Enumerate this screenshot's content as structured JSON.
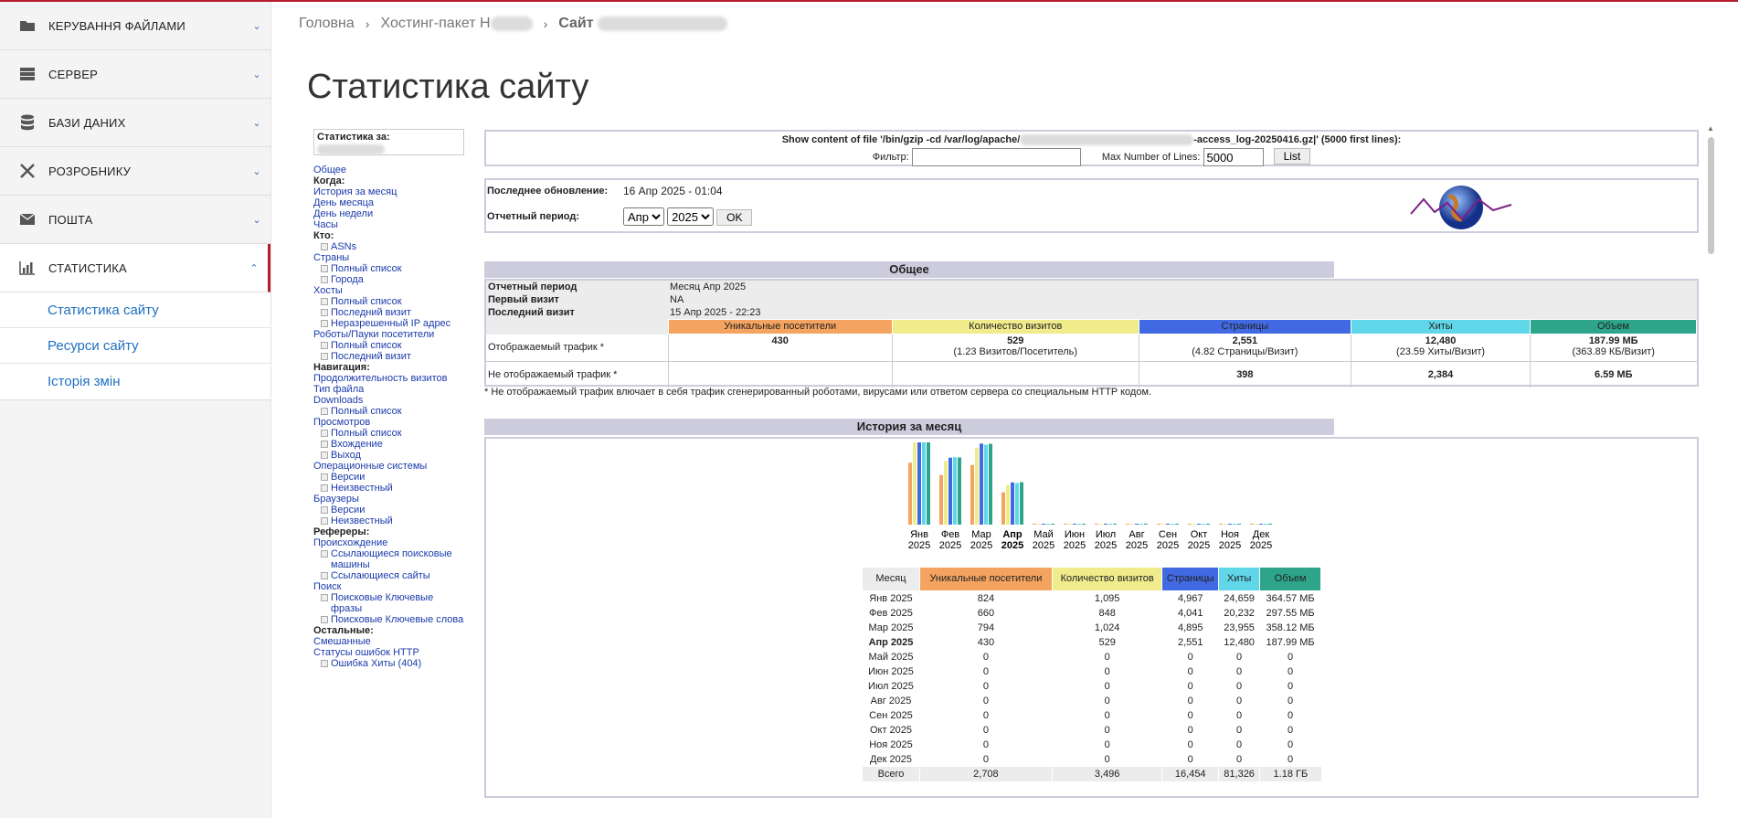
{
  "sidebar": {
    "items": [
      {
        "label": "КЕРУВАННЯ ФАЙЛАМИ",
        "icon": "folder-icon"
      },
      {
        "label": "СЕРВЕР",
        "icon": "server-icon"
      },
      {
        "label": "БАЗИ ДАНИХ",
        "icon": "database-icon"
      },
      {
        "label": "РОЗРОБНИКУ",
        "icon": "tools-icon"
      },
      {
        "label": "ПОШТА",
        "icon": "mail-icon"
      },
      {
        "label": "СТАТИСТИКА",
        "icon": "chart-icon"
      }
    ],
    "sub_items": [
      "Статистика сайту",
      "Ресурси сайту",
      "Історія змін"
    ]
  },
  "breadcrumb": {
    "home": "Головна",
    "hosting": "Хостинг-пакет Н",
    "site": "Сайт"
  },
  "page_title": "Статистика сайту",
  "menu": {
    "stats_for": "Статистика за:",
    "links": [
      {
        "t": "Общее",
        "k": "a"
      },
      {
        "t": "Когда:",
        "k": "b"
      },
      {
        "t": "История за месяц",
        "k": "a"
      },
      {
        "t": "День месяца",
        "k": "a"
      },
      {
        "t": "День недели",
        "k": "a"
      },
      {
        "t": "Часы",
        "k": "a"
      },
      {
        "t": "Кто:",
        "k": "b"
      },
      {
        "t": "ASNs",
        "k": "i"
      },
      {
        "t": "Страны",
        "k": "a"
      },
      {
        "t": "Полный список",
        "k": "i"
      },
      {
        "t": "Города",
        "k": "i"
      },
      {
        "t": "Хосты",
        "k": "a"
      },
      {
        "t": "Полный список",
        "k": "i"
      },
      {
        "t": "Последний визит",
        "k": "i"
      },
      {
        "t": "Неразрешенный IP адрес",
        "k": "i"
      },
      {
        "t": "Роботы/Пауки посетители",
        "k": "a"
      },
      {
        "t": "Полный список",
        "k": "i"
      },
      {
        "t": "Последний визит",
        "k": "i"
      },
      {
        "t": "Навигация:",
        "k": "b"
      },
      {
        "t": "Продолжительность визитов",
        "k": "a"
      },
      {
        "t": "Тип файла",
        "k": "a"
      },
      {
        "t": "Downloads",
        "k": "a"
      },
      {
        "t": "Полный список",
        "k": "i"
      },
      {
        "t": "Просмотров",
        "k": "a"
      },
      {
        "t": "Полный список",
        "k": "i"
      },
      {
        "t": "Вхождение",
        "k": "i"
      },
      {
        "t": "Выход",
        "k": "i"
      },
      {
        "t": "Операционные системы",
        "k": "a"
      },
      {
        "t": "Версии",
        "k": "i"
      },
      {
        "t": "Неизвестный",
        "k": "i"
      },
      {
        "t": "Браузеры",
        "k": "a"
      },
      {
        "t": "Версии",
        "k": "i"
      },
      {
        "t": "Неизвестный",
        "k": "i"
      },
      {
        "t": "Рефереры:",
        "k": "b"
      },
      {
        "t": "Происхождение",
        "k": "a"
      },
      {
        "t": "Ссылающиеся поисковые машины",
        "k": "i"
      },
      {
        "t": "Ссылающиеся сайты",
        "k": "i"
      },
      {
        "t": "Поиск",
        "k": "a"
      },
      {
        "t": "Поисковые Ключевые фразы",
        "k": "i"
      },
      {
        "t": "Поисковые Ключевые слова",
        "k": "i"
      },
      {
        "t": "Остальные:",
        "k": "b"
      },
      {
        "t": "Смешанные",
        "k": "a"
      },
      {
        "t": "Статусы ошибок HTTP",
        "k": "a"
      },
      {
        "t": "Ошибка Хиты (404)",
        "k": "i"
      }
    ]
  },
  "file_box": {
    "title_a": "Show content of file '/bin/gzip -cd /var/log/apache/",
    "title_b": "-access_log-20250416.gz|' (5000 first lines):",
    "filter_label": "Фильтр:",
    "max_label": "Max Number of Lines:",
    "max_value": "5000",
    "list_btn": "List"
  },
  "update": {
    "last_label": "Последнее обновление:",
    "last_value": "16 Апр 2025 - 01:04",
    "period_label": "Отчетный период:",
    "month": "Апр",
    "year": "2025",
    "ok": "OK"
  },
  "general": {
    "header": "Общее",
    "period_label": "Отчетный период",
    "period_value": "Месяц Апр 2025",
    "first_label": "Первый визит",
    "first_value": "NA",
    "last_label": "Последний визит",
    "last_value": "15 Апр 2025 - 22:23",
    "cols": [
      "Уникальные посетители",
      "Количество визитов",
      "Страницы",
      "Хиты",
      "Объем"
    ],
    "viewed_label": "Отображаемый трафик *",
    "viewed": [
      "430",
      "529",
      "2,551",
      "12,480",
      "187.99 МБ"
    ],
    "viewed_sub": [
      "",
      "(1.23 Визитов/Посетитель)",
      "(4.82 Страницы/Визит)",
      "(23.59 Хиты/Визит)",
      "(363.89 КБ/Визит)"
    ],
    "notviewed_label": "Не отображаемый трафик *",
    "notviewed": [
      "",
      "",
      "398",
      "2,384",
      "6.59 МБ"
    ],
    "note": "* Не отображаемый трафик влючает в себя трафик сгенерированный роботами, вирусами или ответом сервера со специальным HTTP кодом."
  },
  "month_history": {
    "header": "История за месяц",
    "col_month": "Месяц",
    "cols": [
      "Уникальные посетители",
      "Количество визитов",
      "Страницы",
      "Хиты",
      "Объем"
    ],
    "rows": [
      [
        "Янв 2025",
        "824",
        "1,095",
        "4,967",
        "24,659",
        "364.57 МБ"
      ],
      [
        "Фев 2025",
        "660",
        "848",
        "4,041",
        "20,232",
        "297.55 МБ"
      ],
      [
        "Мар 2025",
        "794",
        "1,024",
        "4,895",
        "23,955",
        "358.12 МБ"
      ],
      [
        "Апр 2025",
        "430",
        "529",
        "2,551",
        "12,480",
        "187.99 МБ"
      ],
      [
        "Май 2025",
        "0",
        "0",
        "0",
        "0",
        "0"
      ],
      [
        "Июн 2025",
        "0",
        "0",
        "0",
        "0",
        "0"
      ],
      [
        "Июл 2025",
        "0",
        "0",
        "0",
        "0",
        "0"
      ],
      [
        "Авг 2025",
        "0",
        "0",
        "0",
        "0",
        "0"
      ],
      [
        "Сен 2025",
        "0",
        "0",
        "0",
        "0",
        "0"
      ],
      [
        "Окт 2025",
        "0",
        "0",
        "0",
        "0",
        "0"
      ],
      [
        "Ноя 2025",
        "0",
        "0",
        "0",
        "0",
        "0"
      ],
      [
        "Дек 2025",
        "0",
        "0",
        "0",
        "0",
        "0"
      ]
    ],
    "total": [
      "Всего",
      "2,708",
      "3,496",
      "16,454",
      "81,326",
      "1.18 ГБ"
    ]
  },
  "chart_data": {
    "type": "bar",
    "categories": [
      "Янв",
      "Фев",
      "Мар",
      "Апр",
      "Май",
      "Июн",
      "Июл",
      "Авг",
      "Сен",
      "Окт",
      "Ноя",
      "Дек"
    ],
    "year": "2025",
    "highlight": "Апр",
    "series": [
      {
        "name": "Уникальные посетители",
        "values": [
          824,
          660,
          794,
          430,
          0,
          0,
          0,
          0,
          0,
          0,
          0,
          0
        ]
      },
      {
        "name": "Количество визитов",
        "values": [
          1095,
          848,
          1024,
          529,
          0,
          0,
          0,
          0,
          0,
          0,
          0,
          0
        ]
      },
      {
        "name": "Страницы",
        "values": [
          4967,
          4041,
          4895,
          2551,
          0,
          0,
          0,
          0,
          0,
          0,
          0,
          0
        ]
      },
      {
        "name": "Хиты",
        "values": [
          24659,
          20232,
          23955,
          12480,
          0,
          0,
          0,
          0,
          0,
          0,
          0,
          0
        ]
      },
      {
        "name": "Объем",
        "values": [
          364.57,
          297.55,
          358.12,
          187.99,
          0,
          0,
          0,
          0,
          0,
          0,
          0,
          0
        ]
      }
    ]
  },
  "colors": {
    "uniq": "#f4a460",
    "visits": "#f0ec8c",
    "pages": "#4169e1",
    "hits": "#5fd7e8",
    "bw": "#2ea58a",
    "accent": "#b71c2c"
  }
}
